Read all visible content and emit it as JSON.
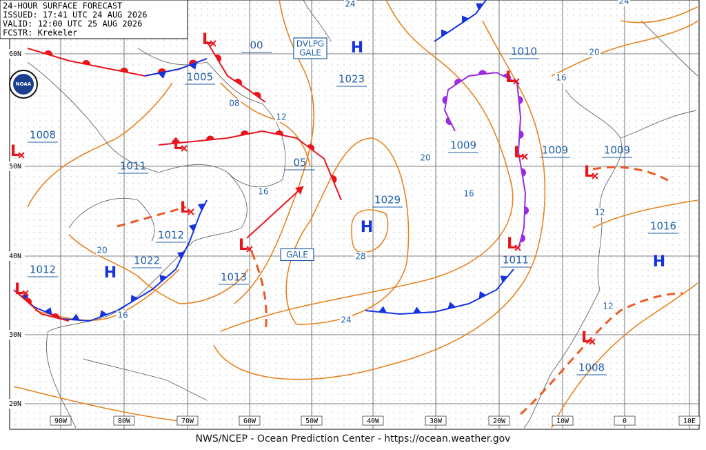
{
  "header": [
    "24-HOUR SURFACE FORECAST",
    "ISSUED: 17:41 UTC 24 AUG 2026",
    "VALID:  12:00 UTC 25 AUG 2026",
    "FCSTR:  Krekeler"
  ],
  "logo": "NOAA",
  "footer": "NWS/NCEP - Ocean Prediction Center - https://ocean.weather.gov",
  "lat_labels": [
    "60N",
    "50N",
    "40N",
    "30N",
    "20N"
  ],
  "lon_labels": [
    "90W",
    "80W",
    "70W",
    "60W",
    "50W",
    "40W",
    "30W",
    "20W",
    "10W",
    "0",
    "10E"
  ],
  "pressure_labels": [
    "1005",
    "00",
    "1008",
    "1011",
    "05",
    "1012",
    "1022",
    "1013",
    "1012",
    "1023",
    "1029",
    "1010",
    "1009",
    "1009",
    "1009",
    "1016",
    "1011",
    "1008"
  ],
  "isobar_labels": [
    "08",
    "12",
    "16",
    "20",
    "16",
    "24",
    "28",
    "20",
    "16",
    "16",
    "20",
    "12",
    "12",
    "24",
    "24"
  ],
  "highs": [
    "H",
    "H",
    "H",
    "H"
  ],
  "lows": [
    "L",
    "L",
    "L",
    "L",
    "L",
    "L",
    "L",
    "L",
    "L",
    "L",
    "L"
  ],
  "warnings": [
    [
      "DVLPG",
      "GALE"
    ],
    [
      "GALE"
    ]
  ]
}
